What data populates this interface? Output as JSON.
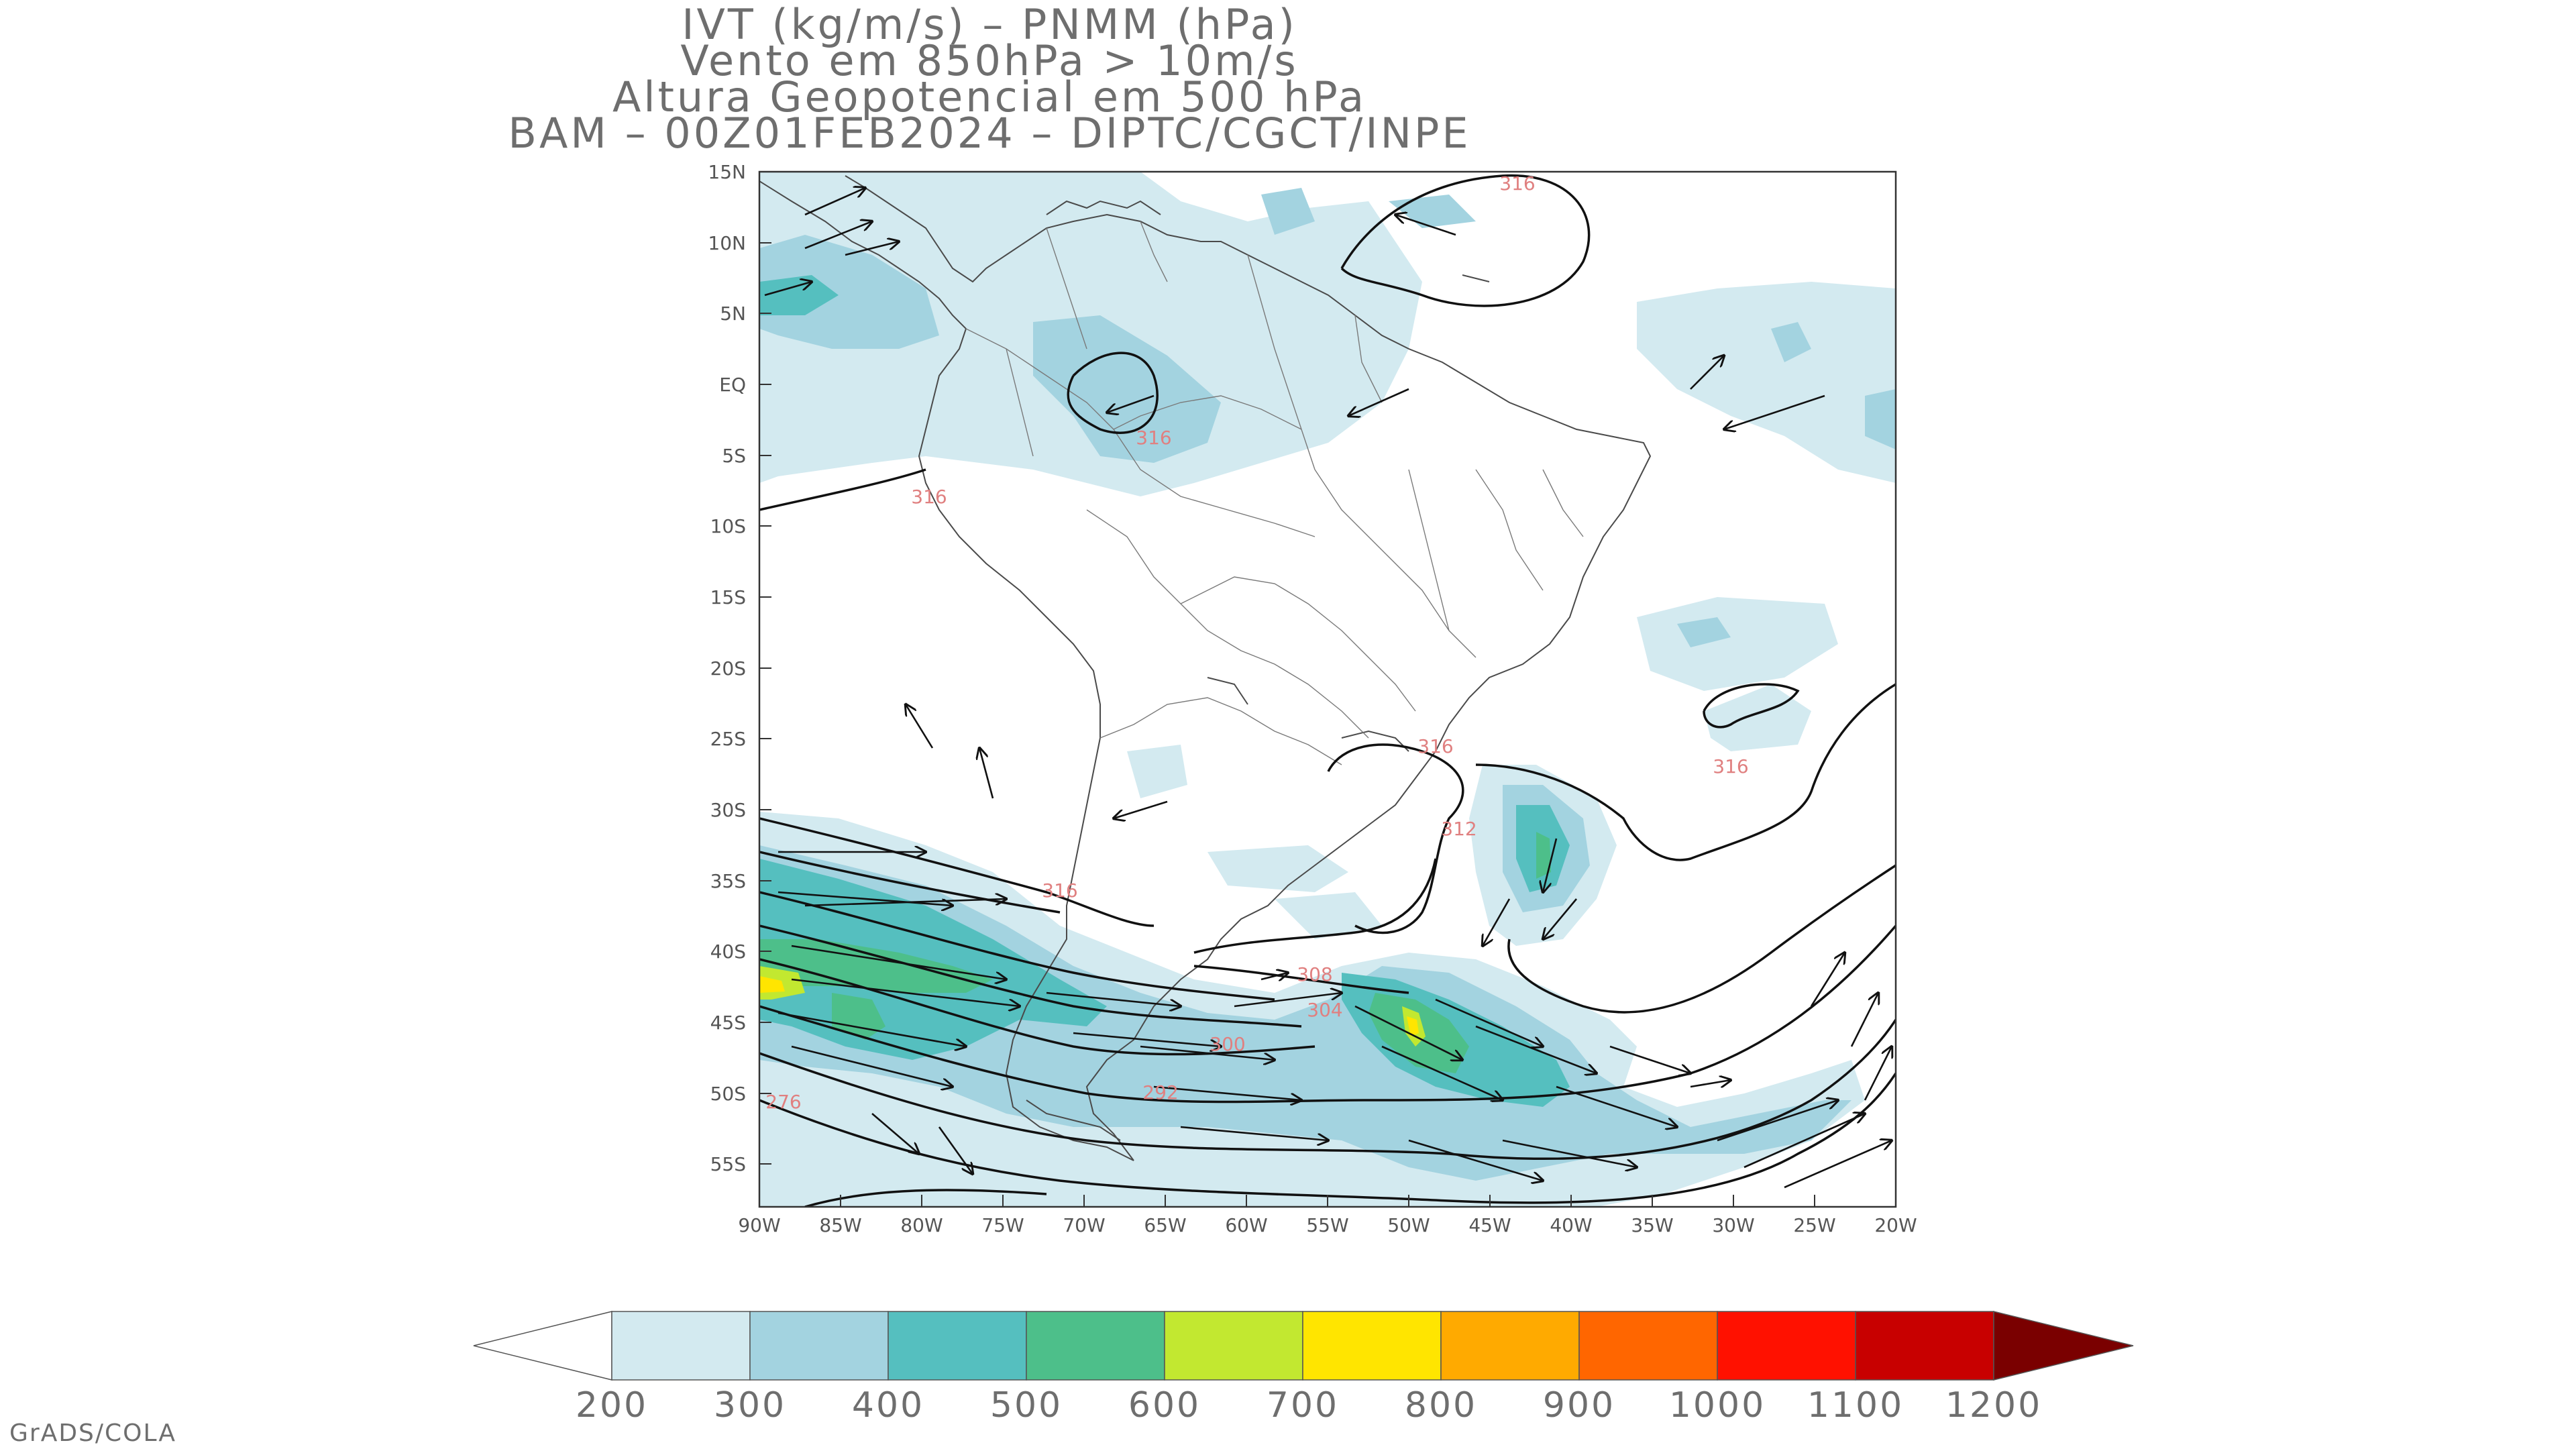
{
  "title_lines": [
    "IVT (kg/m/s) – PNMM (hPa)",
    "Vento em 850hPa > 10m/s",
    "Altura Geopotencial em 500 hPa",
    "BAM – 00Z01FEB2024 – DIPTC/CGCT/INPE"
  ],
  "map": {
    "lon_range": [
      -90,
      -20
    ],
    "lat_range": [
      -58,
      15
    ],
    "lat_ticks": [
      "15N",
      "10N",
      "5N",
      "EQ",
      "5S",
      "10S",
      "15S",
      "20S",
      "25S",
      "30S",
      "35S",
      "40S",
      "45S",
      "50S",
      "55S"
    ],
    "lon_ticks": [
      "90W",
      "85W",
      "80W",
      "75W",
      "70W",
      "65W",
      "60W",
      "55W",
      "50W",
      "45W",
      "40W",
      "35W",
      "30W",
      "25W",
      "20W"
    ],
    "contour_labels": [
      "316",
      "316",
      "316",
      "316",
      "316",
      "312",
      "316",
      "308",
      "304",
      "300",
      "292",
      "276"
    ]
  },
  "colorbar": {
    "labels": [
      "200",
      "300",
      "400",
      "500",
      "600",
      "700",
      "800",
      "900",
      "1000",
      "1100",
      "1200"
    ],
    "colors": [
      "#d3eaf0",
      "#a3d3e0",
      "#55bfbf",
      "#4dbf8a",
      "#c2e830",
      "#ffe500",
      "#ffaa00",
      "#ff6600",
      "#ff1100",
      "#c80000",
      "#7a0000"
    ]
  },
  "credit": "GrADS/COLA"
}
